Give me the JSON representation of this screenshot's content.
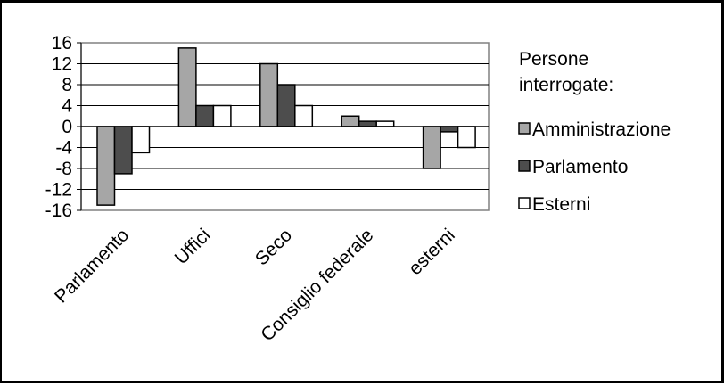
{
  "chart_data": {
    "type": "bar",
    "categories": [
      "Parlamento",
      "Uffici",
      "Seco",
      "Consiglio federale",
      "esterni"
    ],
    "series": [
      {
        "name": "Amministrazione",
        "values": [
          -15,
          15,
          12,
          2,
          -8
        ],
        "color": "#a6a6a6"
      },
      {
        "name": "Parlamento",
        "values": [
          -9,
          4,
          8,
          1,
          -1
        ],
        "color": "#4d4d4d"
      },
      {
        "name": "Esterni",
        "values": [
          -5,
          4,
          4,
          1,
          -4
        ],
        "color": "#ffffff"
      }
    ],
    "yticks": [
      16,
      12,
      8,
      4,
      0,
      -4,
      -8,
      -12,
      -16
    ],
    "ylim": [
      -16,
      16
    ],
    "legend_title_lines": [
      "Persone",
      "interrogate:"
    ],
    "legend_position": "right",
    "grid": true,
    "plot_background": "#ffffff"
  }
}
